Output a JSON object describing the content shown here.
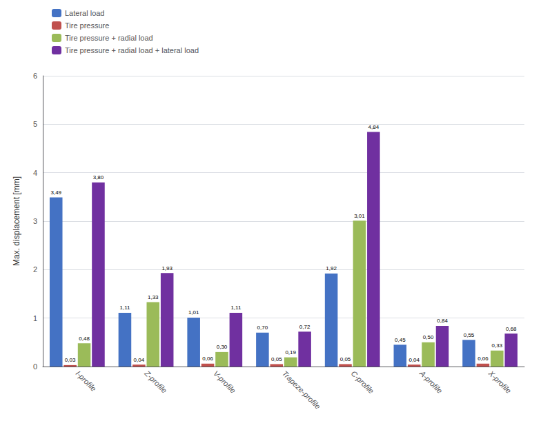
{
  "chart_data": {
    "type": "bar",
    "ylabel": "Max. displacement [mm]",
    "categories": [
      "I-profile",
      "Z-profile",
      "V-profile",
      "Trapeze-profile",
      "C-profile",
      "A-profile",
      "X-profile"
    ],
    "series": [
      {
        "name": "Lateral load",
        "color": "#4472C4",
        "values": [
          3.49,
          1.11,
          1.01,
          0.7,
          1.92,
          0.45,
          0.55
        ],
        "value_labels": [
          "3,49",
          "1,11",
          "1,01",
          "0,70",
          "1,92",
          "0,45",
          "0,55"
        ]
      },
      {
        "name": "Tire pressure",
        "color": "#C0504D",
        "values": [
          0.03,
          0.04,
          0.06,
          0.05,
          0.05,
          0.04,
          0.06
        ],
        "value_labels": [
          "0,03",
          "0,04",
          "0,06",
          "0,05",
          "0,05",
          "0,04",
          "0,06"
        ]
      },
      {
        "name": "Tire pressure + radial load",
        "color": "#9BBB59",
        "values": [
          0.48,
          1.33,
          0.3,
          0.19,
          3.01,
          0.5,
          0.33
        ],
        "value_labels": [
          "0,48",
          "1,33",
          "0,30",
          "0,19",
          "3,01",
          "0,50",
          "0,33"
        ]
      },
      {
        "name": "Tire pressure + radial load + lateral load",
        "color": "#7030A0",
        "values": [
          3.8,
          1.93,
          1.11,
          0.72,
          4.84,
          0.84,
          0.68
        ],
        "value_labels": [
          "3,80",
          "1,93",
          "1,11",
          "0,72",
          "4,84",
          "0,84",
          "0,68"
        ]
      }
    ],
    "ylim": [
      0,
      6
    ],
    "yticks": [
      0,
      1,
      2,
      3,
      4,
      5,
      6
    ],
    "grid": true,
    "legend": "upper left",
    "data_labels": true
  }
}
